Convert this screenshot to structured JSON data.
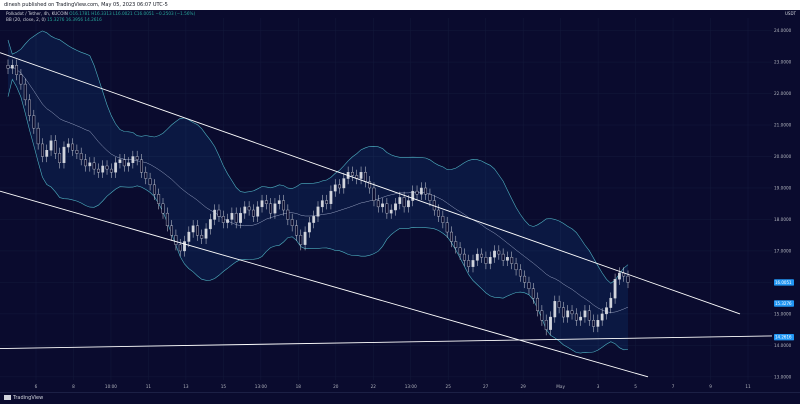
{
  "header": {
    "published": "dinesh published on TradingView.com, May 05, 2023 06:07 UTC-5"
  },
  "legend": {
    "symbol": "Polkadot / Tether, 4h, KUCOIN",
    "ohlc": "O16.1781 H16.3313 L16.0021 C16.0051 −0.2503 (−1.56%)",
    "bb_label": "BB (20, close, 2, 0)",
    "bb_values": "15.3276  16.3956  14.2616"
  },
  "currency": "USDT",
  "y_ticks": [
    "24.0000",
    "23.0000",
    "22.0000",
    "21.0000",
    "20.0000",
    "19.0000",
    "18.0000",
    "17.0000",
    "16.0000",
    "15.0000",
    "14.0000",
    "13.0000"
  ],
  "y_min": 12.9,
  "y_max": 24.4,
  "x_ticks": [
    "6",
    "8",
    "10:00",
    "11",
    "13",
    "15",
    "13:00",
    "18",
    "20",
    "22",
    "13:00",
    "25",
    "27",
    "29",
    "May",
    "3",
    "5",
    "7",
    "9",
    "11"
  ],
  "price_tags": [
    {
      "value": "16.0051",
      "price": 16.0,
      "color": "#2196f3"
    },
    {
      "value": "15.3276",
      "price": 15.33,
      "color": "#2196f3"
    },
    {
      "value": "14.2616",
      "price": 14.26,
      "color": "#2196f3"
    }
  ],
  "footer": {
    "brand": "TradingView"
  },
  "colors": {
    "up": "#26a69a",
    "down": "#ef5350",
    "candle": "#d1d4dc",
    "band": "#4fb3c4",
    "basis": "#9aa4c4",
    "trend": "#ffffff",
    "grid": "#141a3c"
  },
  "chart_data": {
    "type": "candlestick",
    "title": "Polkadot / Tether, 4h, KUCOIN",
    "ylim": [
      12.9,
      24.4
    ],
    "close": [
      22.8,
      22.9,
      22.6,
      22.3,
      21.8,
      21.3,
      20.9,
      20.4,
      20.0,
      20.2,
      20.5,
      20.1,
      19.8,
      20.3,
      20.4,
      20.2,
      20.1,
      19.9,
      19.7,
      19.8,
      19.6,
      19.5,
      19.7,
      19.6,
      19.5,
      19.8,
      19.9,
      19.7,
      19.8,
      20.0,
      19.9,
      19.5,
      19.3,
      19.1,
      18.8,
      18.5,
      18.2,
      17.8,
      17.5,
      17.2,
      17.0,
      17.3,
      17.6,
      17.8,
      17.5,
      17.4,
      17.7,
      18.0,
      18.3,
      18.1,
      17.9,
      18.0,
      18.2,
      17.9,
      18.2,
      18.4,
      18.3,
      18.1,
      18.4,
      18.6,
      18.5,
      18.2,
      18.5,
      18.6,
      18.3,
      18.0,
      17.8,
      17.5,
      17.2,
      17.6,
      17.9,
      18.1,
      18.4,
      18.6,
      18.5,
      18.9,
      19.1,
      19.0,
      19.3,
      19.5,
      19.4,
      19.3,
      19.5,
      19.2,
      19.0,
      18.6,
      18.4,
      18.5,
      18.2,
      18.3,
      18.5,
      18.7,
      18.4,
      18.6,
      18.9,
      18.8,
      19.0,
      18.8,
      18.6,
      18.3,
      18.1,
      17.9,
      17.6,
      17.3,
      17.1,
      16.9,
      16.7,
      16.5,
      16.7,
      16.9,
      16.8,
      16.6,
      16.8,
      17.0,
      16.9,
      16.7,
      16.8,
      16.6,
      16.4,
      16.2,
      16.0,
      15.8,
      15.5,
      15.1,
      14.8,
      14.5,
      14.9,
      15.4,
      15.2,
      14.9,
      15.1,
      15.0,
      14.8,
      14.9,
      15.1,
      14.8,
      14.6,
      14.8,
      15.0,
      15.2,
      15.5,
      16.1,
      16.3,
      16.2,
      16.0
    ]
  }
}
